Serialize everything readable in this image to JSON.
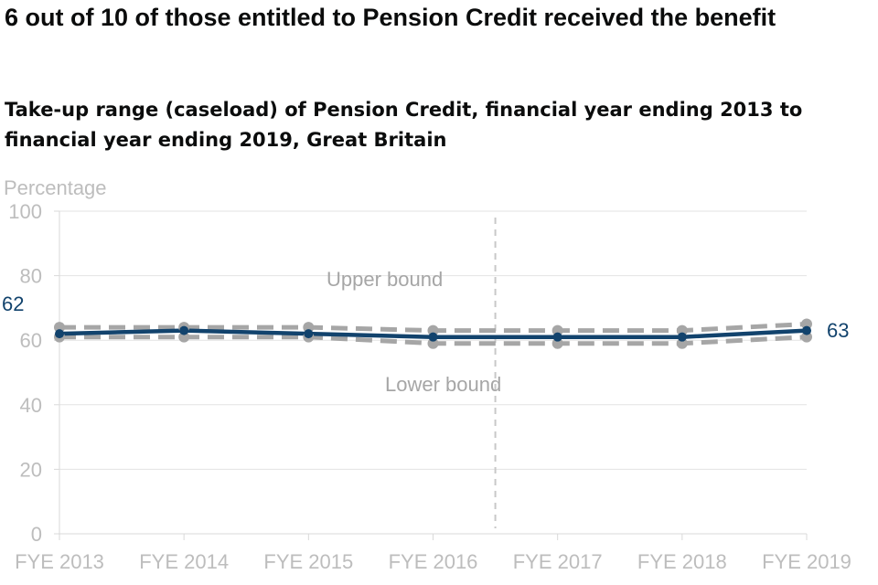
{
  "header": {
    "title": "6 out of 10 of those entitled to Pension Credit received the benefit",
    "subtitle": "Take-up range (caseload) of Pension Credit, financial year ending 2013 to financial year ending 2019, Great Britain"
  },
  "chart_data": {
    "type": "line",
    "title": "6 out of 10 of those entitled to Pension Credit received the benefit",
    "subtitle": "Take-up range (caseload) of Pension Credit, financial year ending 2013 to financial year ending 2019, Great Britain",
    "ylabel": "Percentage",
    "xlabel": "",
    "ylim": [
      0,
      100
    ],
    "yticks": [
      0,
      20,
      40,
      60,
      80,
      100
    ],
    "grid": "horizontal",
    "categories": [
      "FYE 2013",
      "FYE 2014",
      "FYE 2015",
      "FYE 2016",
      "FYE 2017",
      "FYE 2018",
      "FYE 2019"
    ],
    "series": [
      {
        "name": "",
        "role": "central",
        "color": "#12436d",
        "style": "solid",
        "values": [
          62,
          63,
          62,
          61,
          61,
          61,
          63
        ]
      },
      {
        "name": "Upper bound",
        "role": "upper",
        "color": "#a6a6a6",
        "style": "dashed",
        "values": [
          64,
          64,
          64,
          63,
          63,
          63,
          65
        ]
      },
      {
        "name": "Lower bound",
        "role": "lower",
        "color": "#a6a6a6",
        "style": "dashed",
        "values": [
          61,
          61,
          61,
          59,
          59,
          59,
          61
        ]
      }
    ],
    "annotations": {
      "upper_label": "Upper bound",
      "lower_label": "Lower bound",
      "start_value_label": "62",
      "end_value_label": "63",
      "series_break_after": "FYE 2016"
    }
  }
}
